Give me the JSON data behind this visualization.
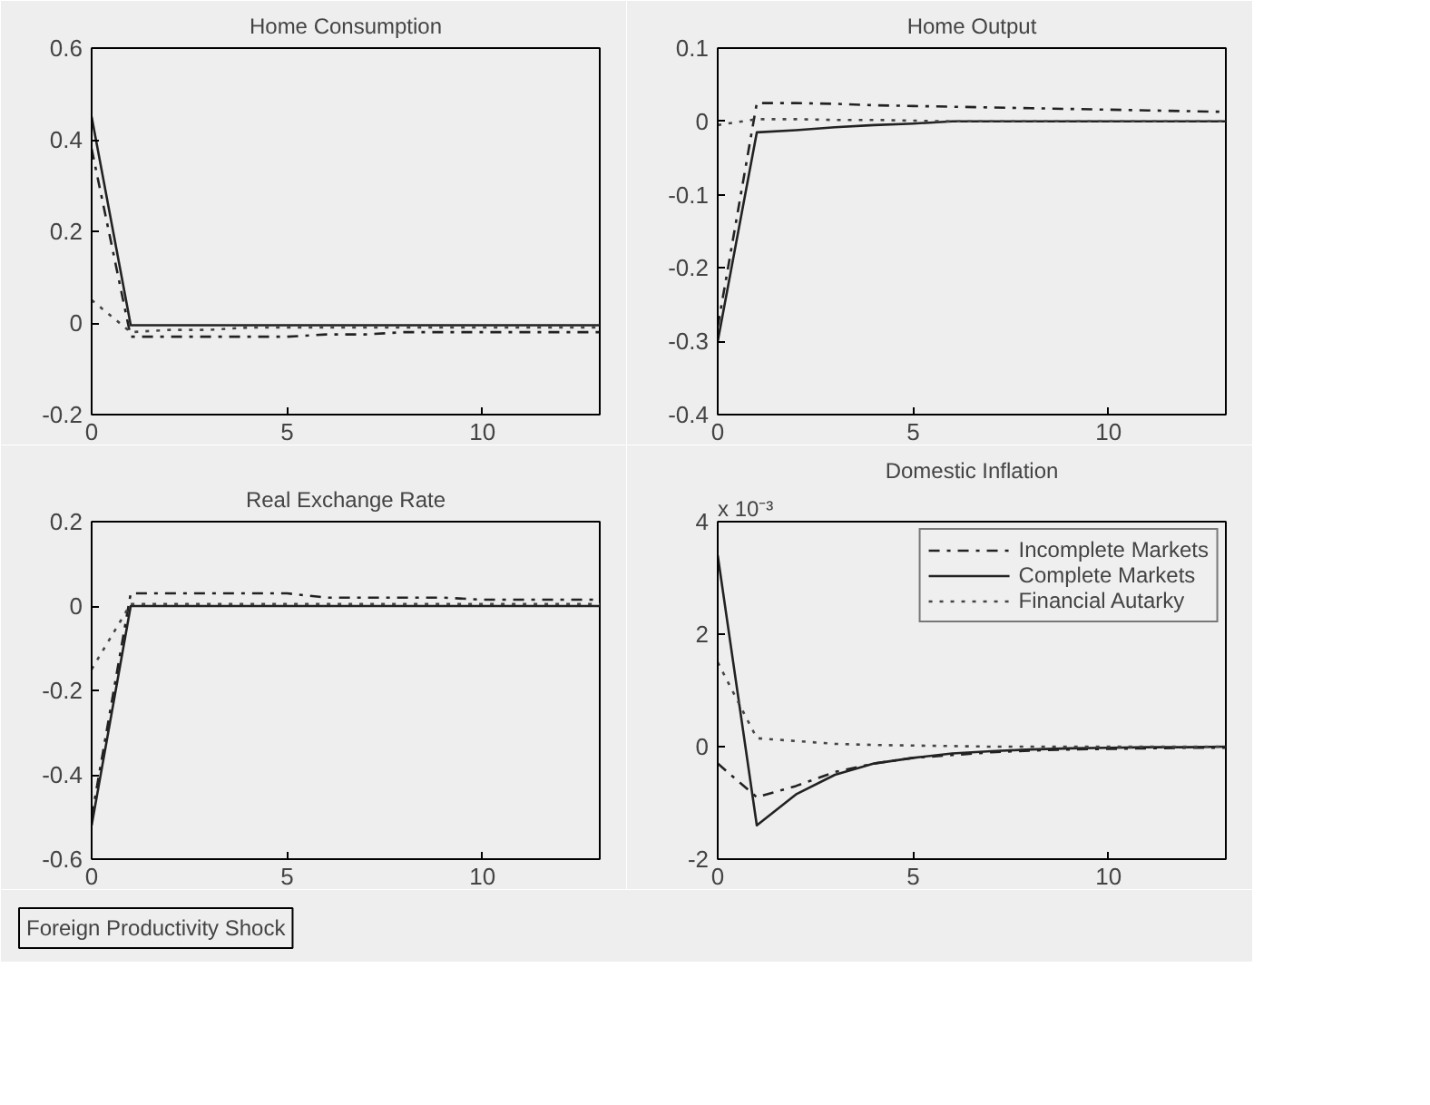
{
  "chart_data": [
    {
      "type": "line",
      "title": "Home Consumption",
      "x": [
        0,
        1,
        2,
        3,
        4,
        5,
        6,
        7,
        8,
        9,
        10,
        11,
        12,
        13
      ],
      "xlim": [
        0,
        13
      ],
      "xticks": [
        0,
        5,
        10
      ],
      "ylim": [
        -0.2,
        0.6
      ],
      "yticks": [
        -0.2,
        0,
        0.2,
        0.4,
        0.6
      ],
      "grid": false,
      "legend": false,
      "series": [
        {
          "color": "#222222",
          "line_style": "dashdot",
          "values": [
            0.38,
            -0.03,
            -0.03,
            -0.03,
            -0.03,
            -0.03,
            -0.025,
            -0.025,
            -0.02,
            -0.02,
            -0.02,
            -0.02,
            -0.02,
            -0.02
          ]
        },
        {
          "color": "#222222",
          "line_style": "solid",
          "values": [
            0.45,
            -0.005,
            -0.005,
            -0.005,
            -0.005,
            -0.005,
            -0.005,
            -0.005,
            -0.005,
            -0.005,
            -0.005,
            -0.005,
            -0.005,
            -0.005
          ]
        },
        {
          "color": "#444444",
          "line_style": "dotted",
          "values": [
            0.05,
            -0.02,
            -0.015,
            -0.015,
            -0.01,
            -0.01,
            -0.01,
            -0.01,
            -0.01,
            -0.01,
            -0.01,
            -0.01,
            -0.01,
            -0.01
          ]
        }
      ]
    },
    {
      "type": "line",
      "title": "Home Output",
      "x": [
        0,
        1,
        2,
        3,
        4,
        5,
        6,
        7,
        8,
        9,
        10,
        11,
        12,
        13
      ],
      "xlim": [
        0,
        13
      ],
      "xticks": [
        0,
        5,
        10
      ],
      "ylim": [
        -0.4,
        0.1
      ],
      "yticks": [
        -0.4,
        -0.3,
        -0.2,
        -0.1,
        0,
        0.1
      ],
      "grid": false,
      "legend": false,
      "series": [
        {
          "color": "#222222",
          "line_style": "dashdot",
          "values": [
            -0.28,
            0.025,
            0.025,
            0.024,
            0.022,
            0.021,
            0.02,
            0.019,
            0.018,
            0.017,
            0.016,
            0.015,
            0.014,
            0.013
          ]
        },
        {
          "color": "#222222",
          "line_style": "solid",
          "values": [
            -0.3,
            -0.015,
            -0.012,
            -0.008,
            -0.005,
            -0.003,
            0,
            0,
            0,
            0,
            0,
            0,
            0,
            0
          ]
        },
        {
          "color": "#444444",
          "line_style": "dotted",
          "values": [
            -0.005,
            0.003,
            0.003,
            0.002,
            0.002,
            0.001,
            0,
            0,
            0,
            0,
            0,
            0,
            0,
            0
          ]
        }
      ]
    },
    {
      "type": "line",
      "title": "Real Exchange Rate",
      "x": [
        0,
        1,
        2,
        3,
        4,
        5,
        6,
        7,
        8,
        9,
        10,
        11,
        12,
        13
      ],
      "xlim": [
        0,
        13
      ],
      "xticks": [
        0,
        5,
        10
      ],
      "ylim": [
        -0.6,
        0.2
      ],
      "yticks": [
        -0.6,
        -0.4,
        -0.2,
        0,
        0.2
      ],
      "grid": false,
      "legend": false,
      "series": [
        {
          "color": "#222222",
          "line_style": "dashdot",
          "values": [
            -0.5,
            0.03,
            0.03,
            0.03,
            0.03,
            0.03,
            0.02,
            0.02,
            0.02,
            0.02,
            0.015,
            0.015,
            0.015,
            0.015
          ]
        },
        {
          "color": "#222222",
          "line_style": "solid",
          "values": [
            -0.52,
            0,
            0,
            0,
            0,
            0,
            0,
            0,
            0,
            0,
            0,
            0,
            0,
            0
          ]
        },
        {
          "color": "#444444",
          "line_style": "dotted",
          "values": [
            -0.15,
            0.005,
            0.005,
            0.005,
            0.005,
            0.005,
            0.005,
            0.005,
            0.005,
            0.005,
            0.005,
            0.005,
            0.005,
            0.005
          ]
        }
      ]
    },
    {
      "type": "line",
      "title": "Domestic Inflation",
      "annotations": [
        "x 10⁻³",
        "Foreign Productivity Shock"
      ],
      "x": [
        0,
        1,
        2,
        3,
        4,
        5,
        6,
        7,
        8,
        9,
        10,
        11,
        12,
        13
      ],
      "xlim": [
        0,
        13
      ],
      "xticks": [
        0,
        5,
        10
      ],
      "ylim": [
        -2,
        4
      ],
      "yticks": [
        -2,
        0,
        2,
        4
      ],
      "grid": false,
      "legend": "top right",
      "series": [
        {
          "name": "Incomplete Markets",
          "color": "#222222",
          "line_style": "dashdot",
          "values": [
            -0.3,
            -0.9,
            -0.7,
            -0.45,
            -0.3,
            -0.2,
            -0.15,
            -0.1,
            -0.07,
            -0.05,
            -0.04,
            -0.03,
            -0.02,
            -0.02
          ]
        },
        {
          "name": "Complete Markets",
          "color": "#222222",
          "line_style": "solid",
          "values": [
            3.4,
            -1.4,
            -0.85,
            -0.5,
            -0.3,
            -0.2,
            -0.12,
            -0.08,
            -0.05,
            -0.03,
            -0.02,
            -0.01,
            -0.01,
            0
          ]
        },
        {
          "name": "Financial Autarky",
          "color": "#444444",
          "line_style": "dotted",
          "values": [
            1.5,
            0.15,
            0.1,
            0.05,
            0.03,
            0.02,
            0.01,
            0,
            0,
            0,
            0,
            0,
            0,
            0
          ]
        }
      ]
    }
  ]
}
